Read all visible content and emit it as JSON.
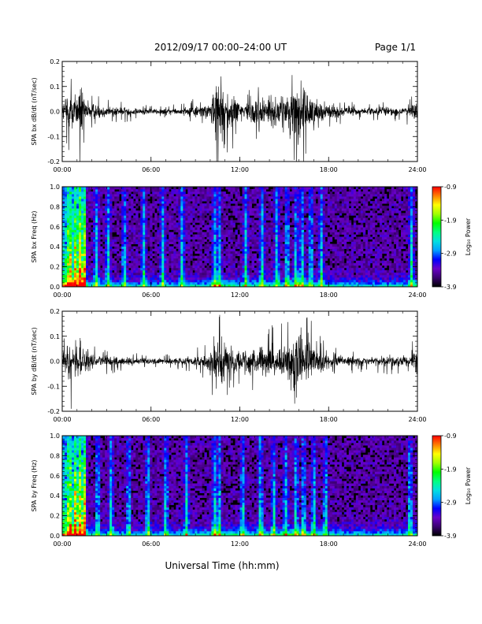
{
  "header": {
    "title": "2012/09/17   00:00–24:00 UT",
    "page": "Page 1/1"
  },
  "xaxis": {
    "label": "Universal Time (hh:mm)",
    "ticks": [
      "00:00",
      "06:00",
      "12:00",
      "18:00",
      "24:00"
    ],
    "range_hours": [
      0,
      24
    ]
  },
  "colorbar": {
    "label": "Log₁₀ Power",
    "tick_values": [
      -0.9,
      -1.9,
      -2.9,
      -3.9
    ],
    "range": [
      -3.9,
      -0.9
    ],
    "stops": [
      "#000000",
      "#3a0070",
      "#6a00c8",
      "#0000ff",
      "#00a0ff",
      "#00e0e0",
      "#00ff80",
      "#00ff00",
      "#a0ff00",
      "#ffff00",
      "#ff8000",
      "#ff0000"
    ]
  },
  "chart_data": [
    {
      "type": "line",
      "ylabel": "SPA bx dB/dt (nT/sec)",
      "ylim": [
        -0.2,
        0.2
      ],
      "yticks": [
        -0.2,
        -0.1,
        0.0,
        0.1,
        0.2
      ],
      "envelope": {
        "hours": [
          0,
          0.4,
          0.8,
          1.0,
          1.3,
          1.5,
          2.0,
          3.0,
          4.0,
          5.0,
          6.0,
          7.0,
          8.0,
          9.0,
          10.0,
          10.4,
          10.6,
          11.0,
          11.5,
          12.0,
          12.5,
          13.0,
          13.5,
          14.0,
          14.4,
          14.6,
          15.0,
          15.5,
          16.0,
          16.5,
          17.0,
          17.5,
          18.0,
          19.0,
          20.0,
          21.0,
          22.0,
          23.0,
          23.6,
          24.0
        ],
        "amplitude": [
          0.04,
          0.16,
          0.12,
          0.1,
          0.18,
          0.08,
          0.05,
          0.035,
          0.03,
          0.025,
          0.02,
          0.018,
          0.025,
          0.035,
          0.05,
          0.2,
          0.2,
          0.12,
          0.1,
          0.08,
          0.06,
          0.09,
          0.12,
          0.1,
          0.1,
          0.08,
          0.12,
          0.14,
          0.2,
          0.13,
          0.1,
          0.07,
          0.05,
          0.03,
          0.025,
          0.025,
          0.03,
          0.03,
          0.04,
          0.1
        ]
      }
    },
    {
      "type": "heatmap",
      "ylabel": "SPA bx Freq (Hz)",
      "ylim": [
        0.0,
        1.0
      ],
      "yticks": [
        0.0,
        0.2,
        0.4,
        0.6,
        0.8,
        1.0
      ],
      "zlim": [
        -3.9,
        -0.9
      ],
      "bursts_hours": [
        0.5,
        0.9,
        1.2,
        1.5,
        2.3,
        3.1,
        4.2,
        5.5,
        6.8,
        8.1,
        10.3,
        10.6,
        12.4,
        13.5,
        14.5,
        15.2,
        15.8,
        16.2,
        16.8,
        17.5,
        23.6
      ]
    },
    {
      "type": "line",
      "ylabel": "SPA by dB/dt (nT/sec)",
      "ylim": [
        -0.2,
        0.2
      ],
      "yticks": [
        -0.2,
        -0.1,
        0.0,
        0.1,
        0.2
      ],
      "envelope": {
        "hours": [
          0,
          0.4,
          0.8,
          1.0,
          1.3,
          1.5,
          2.0,
          3.0,
          4.0,
          5.0,
          6.0,
          7.0,
          8.0,
          9.0,
          10.0,
          10.4,
          10.6,
          11.0,
          11.5,
          12.0,
          12.5,
          13.0,
          13.5,
          14.0,
          14.4,
          14.6,
          15.0,
          15.5,
          16.0,
          16.5,
          17.0,
          17.5,
          18.0,
          19.0,
          20.0,
          21.0,
          22.0,
          23.0,
          23.6,
          24.0
        ],
        "amplitude": [
          0.04,
          0.14,
          0.12,
          0.1,
          0.17,
          0.08,
          0.05,
          0.035,
          0.03,
          0.025,
          0.02,
          0.02,
          0.025,
          0.04,
          0.06,
          0.18,
          0.16,
          0.12,
          0.1,
          0.08,
          0.07,
          0.09,
          0.11,
          0.1,
          0.11,
          0.09,
          0.12,
          0.16,
          0.2,
          0.13,
          0.1,
          0.07,
          0.05,
          0.035,
          0.03,
          0.03,
          0.035,
          0.035,
          0.04,
          0.12
        ]
      }
    },
    {
      "type": "heatmap",
      "ylabel": "SPA by Freq (Hz)",
      "ylim": [
        0.0,
        1.0
      ],
      "yticks": [
        0.0,
        0.2,
        0.4,
        0.6,
        0.8,
        1.0
      ],
      "zlim": [
        -3.9,
        -0.9
      ],
      "bursts_hours": [
        0.5,
        0.9,
        1.2,
        1.5,
        2.4,
        3.3,
        4.5,
        5.8,
        7.0,
        8.4,
        10.3,
        10.6,
        12.2,
        13.4,
        14.3,
        15.1,
        15.8,
        16.3,
        17.0,
        17.8,
        23.5
      ]
    }
  ]
}
